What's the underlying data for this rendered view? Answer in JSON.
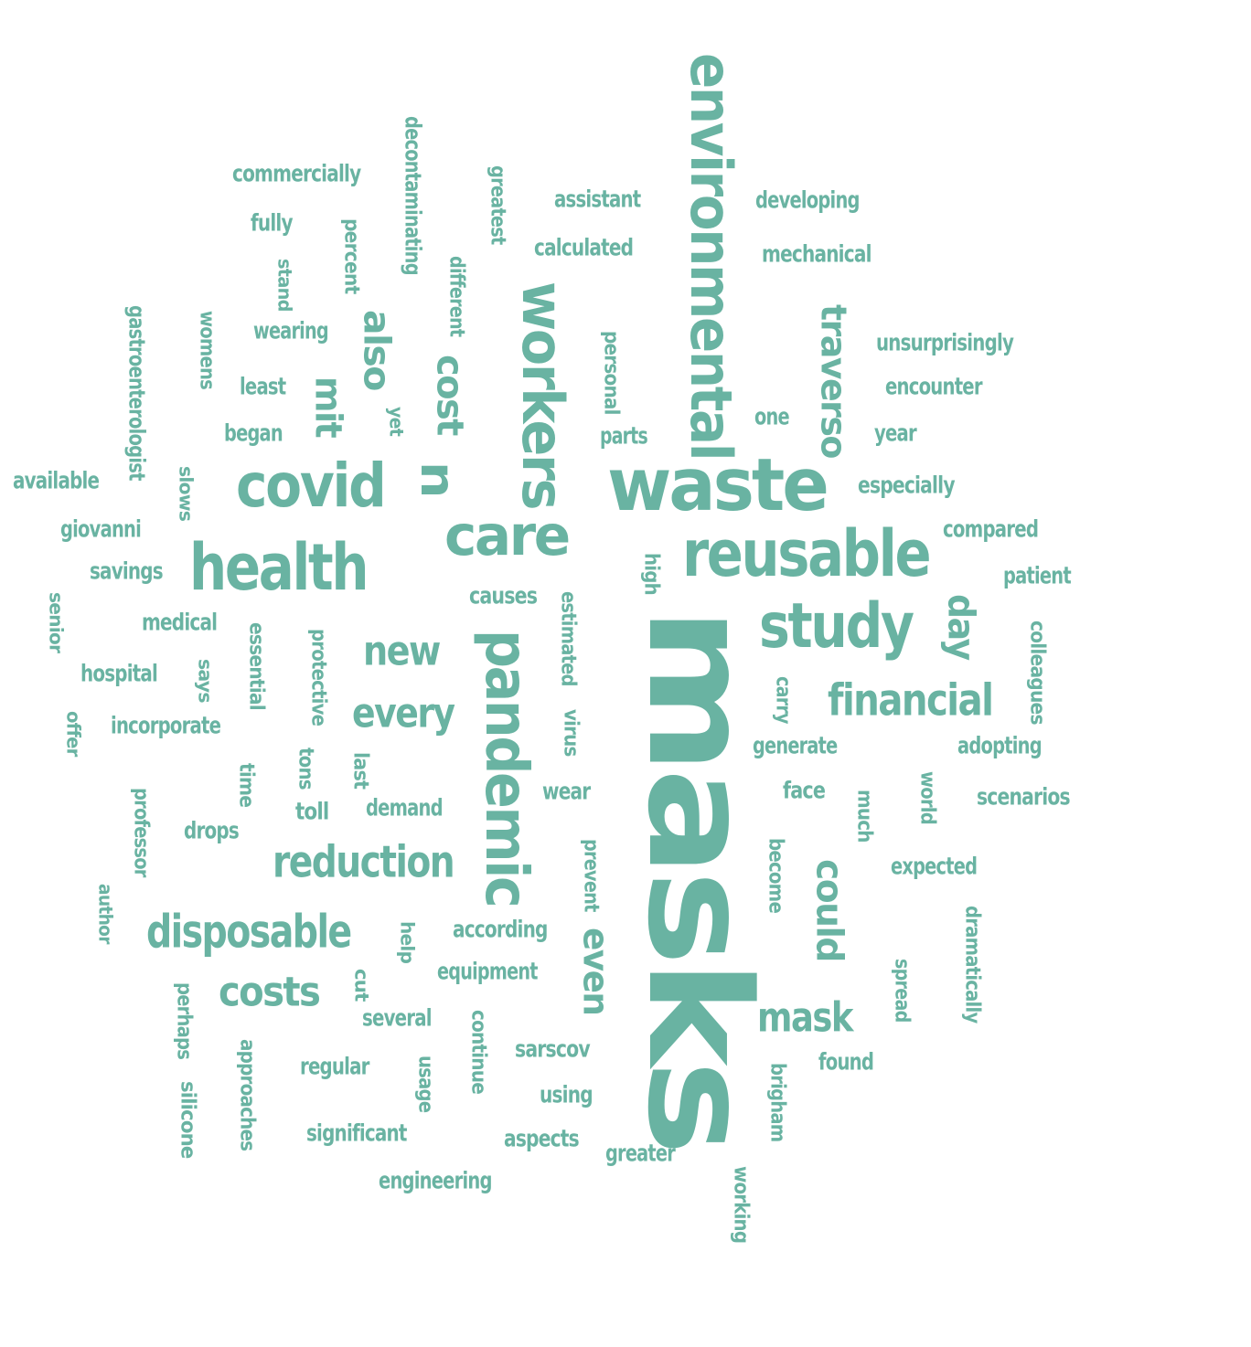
{
  "word_color": "#69b3a2",
  "words": [
    {
      "text": "masks",
      "orientation": "vertical"
    },
    {
      "text": "waste",
      "orientation": "horizontal"
    },
    {
      "text": "environmental",
      "orientation": "vertical"
    },
    {
      "text": "reusable",
      "orientation": "horizontal"
    },
    {
      "text": "health",
      "orientation": "horizontal"
    },
    {
      "text": "covid",
      "orientation": "horizontal"
    },
    {
      "text": "care",
      "orientation": "horizontal"
    },
    {
      "text": "workers",
      "orientation": "vertical"
    },
    {
      "text": "pandemic",
      "orientation": "vertical"
    },
    {
      "text": "study",
      "orientation": "horizontal"
    },
    {
      "text": "financial",
      "orientation": "horizontal"
    },
    {
      "text": "reduction",
      "orientation": "horizontal"
    },
    {
      "text": "disposable",
      "orientation": "horizontal"
    },
    {
      "text": "costs",
      "orientation": "horizontal"
    },
    {
      "text": "mask",
      "orientation": "horizontal"
    },
    {
      "text": "traverso",
      "orientation": "vertical"
    },
    {
      "text": "new",
      "orientation": "horizontal"
    },
    {
      "text": "every",
      "orientation": "horizontal"
    },
    {
      "text": "cost",
      "orientation": "vertical"
    },
    {
      "text": "n",
      "orientation": "vertical"
    },
    {
      "text": "mit",
      "orientation": "vertical"
    },
    {
      "text": "also",
      "orientation": "vertical"
    },
    {
      "text": "could",
      "orientation": "vertical"
    },
    {
      "text": "even",
      "orientation": "vertical"
    },
    {
      "text": "day",
      "orientation": "vertical"
    },
    {
      "text": "commercially",
      "orientation": "horizontal"
    },
    {
      "text": "fully",
      "orientation": "horizontal"
    },
    {
      "text": "decontaminating",
      "orientation": "vertical"
    },
    {
      "text": "greatest",
      "orientation": "vertical"
    },
    {
      "text": "assistant",
      "orientation": "horizontal"
    },
    {
      "text": "developing",
      "orientation": "horizontal"
    },
    {
      "text": "calculated",
      "orientation": "horizontal"
    },
    {
      "text": "mechanical",
      "orientation": "horizontal"
    },
    {
      "text": "percent",
      "orientation": "vertical"
    },
    {
      "text": "stand",
      "orientation": "vertical"
    },
    {
      "text": "different",
      "orientation": "vertical"
    },
    {
      "text": "gastroenterologist",
      "orientation": "vertical"
    },
    {
      "text": "womens",
      "orientation": "vertical"
    },
    {
      "text": "wearing",
      "orientation": "horizontal"
    },
    {
      "text": "unsurprisingly",
      "orientation": "horizontal"
    },
    {
      "text": "personal",
      "orientation": "vertical"
    },
    {
      "text": "least",
      "orientation": "horizontal"
    },
    {
      "text": "encounter",
      "orientation": "horizontal"
    },
    {
      "text": "yet",
      "orientation": "vertical"
    },
    {
      "text": "one",
      "orientation": "horizontal"
    },
    {
      "text": "began",
      "orientation": "horizontal"
    },
    {
      "text": "parts",
      "orientation": "horizontal"
    },
    {
      "text": "year",
      "orientation": "horizontal"
    },
    {
      "text": "available",
      "orientation": "horizontal"
    },
    {
      "text": "slows",
      "orientation": "vertical"
    },
    {
      "text": "especially",
      "orientation": "horizontal"
    },
    {
      "text": "giovanni",
      "orientation": "horizontal"
    },
    {
      "text": "compared",
      "orientation": "horizontal"
    },
    {
      "text": "savings",
      "orientation": "horizontal"
    },
    {
      "text": "high",
      "orientation": "vertical"
    },
    {
      "text": "patient",
      "orientation": "horizontal"
    },
    {
      "text": "senior",
      "orientation": "vertical"
    },
    {
      "text": "causes",
      "orientation": "horizontal"
    },
    {
      "text": "medical",
      "orientation": "horizontal"
    },
    {
      "text": "essential",
      "orientation": "vertical"
    },
    {
      "text": "protective",
      "orientation": "vertical"
    },
    {
      "text": "estimated",
      "orientation": "vertical"
    },
    {
      "text": "colleagues",
      "orientation": "vertical"
    },
    {
      "text": "hospital",
      "orientation": "horizontal"
    },
    {
      "text": "says",
      "orientation": "vertical"
    },
    {
      "text": "carry",
      "orientation": "vertical"
    },
    {
      "text": "offer",
      "orientation": "vertical"
    },
    {
      "text": "incorporate",
      "orientation": "horizontal"
    },
    {
      "text": "virus",
      "orientation": "vertical"
    },
    {
      "text": "generate",
      "orientation": "horizontal"
    },
    {
      "text": "adopting",
      "orientation": "horizontal"
    },
    {
      "text": "time",
      "orientation": "vertical"
    },
    {
      "text": "tons",
      "orientation": "vertical"
    },
    {
      "text": "last",
      "orientation": "vertical"
    },
    {
      "text": "wear",
      "orientation": "horizontal"
    },
    {
      "text": "face",
      "orientation": "horizontal"
    },
    {
      "text": "world",
      "orientation": "vertical"
    },
    {
      "text": "scenarios",
      "orientation": "horizontal"
    },
    {
      "text": "professor",
      "orientation": "vertical"
    },
    {
      "text": "toll",
      "orientation": "horizontal"
    },
    {
      "text": "demand",
      "orientation": "horizontal"
    },
    {
      "text": "much",
      "orientation": "vertical"
    },
    {
      "text": "drops",
      "orientation": "horizontal"
    },
    {
      "text": "prevent",
      "orientation": "vertical"
    },
    {
      "text": "become",
      "orientation": "vertical"
    },
    {
      "text": "expected",
      "orientation": "horizontal"
    },
    {
      "text": "author",
      "orientation": "vertical"
    },
    {
      "text": "dramatically",
      "orientation": "vertical"
    },
    {
      "text": "according",
      "orientation": "horizontal"
    },
    {
      "text": "help",
      "orientation": "vertical"
    },
    {
      "text": "equipment",
      "orientation": "horizontal"
    },
    {
      "text": "spread",
      "orientation": "vertical"
    },
    {
      "text": "cut",
      "orientation": "vertical"
    },
    {
      "text": "perhaps",
      "orientation": "vertical"
    },
    {
      "text": "several",
      "orientation": "horizontal"
    },
    {
      "text": "continue",
      "orientation": "vertical"
    },
    {
      "text": "approaches",
      "orientation": "vertical"
    },
    {
      "text": "sarscov",
      "orientation": "horizontal"
    },
    {
      "text": "found",
      "orientation": "horizontal"
    },
    {
      "text": "regular",
      "orientation": "horizontal"
    },
    {
      "text": "usage",
      "orientation": "vertical"
    },
    {
      "text": "brigham",
      "orientation": "vertical"
    },
    {
      "text": "using",
      "orientation": "horizontal"
    },
    {
      "text": "silicone",
      "orientation": "vertical"
    },
    {
      "text": "significant",
      "orientation": "horizontal"
    },
    {
      "text": "aspects",
      "orientation": "horizontal"
    },
    {
      "text": "greater",
      "orientation": "horizontal"
    },
    {
      "text": "engineering",
      "orientation": "horizontal"
    },
    {
      "text": "working",
      "orientation": "vertical"
    }
  ]
}
